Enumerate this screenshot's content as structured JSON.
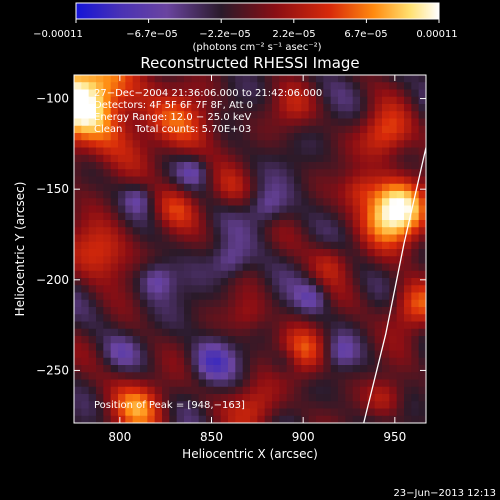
{
  "chart_data": {
    "type": "heatmap",
    "title": "Reconstructed RHESSI Image",
    "xlabel": "Heliocentric X (arcsec)",
    "ylabel": "Heliocentric Y (arcsec)",
    "xlim": [
      775,
      967
    ],
    "ylim": [
      -279,
      -87
    ],
    "x_ticks": [
      {
        "value": 800,
        "label": "800"
      },
      {
        "value": 850,
        "label": "850"
      },
      {
        "value": 900,
        "label": "900"
      },
      {
        "value": 950,
        "label": "950"
      }
    ],
    "y_ticks": [
      {
        "value": -100,
        "label": "−100"
      },
      {
        "value": -150,
        "label": "−150"
      },
      {
        "value": -200,
        "label": "−200"
      },
      {
        "value": -250,
        "label": "−250"
      }
    ],
    "colorbar": {
      "min": -0.00011,
      "max": 0.00011,
      "tick_labels": [
        "−0.00011",
        "−6.7e−05",
        "−2.2e−05",
        "2.2e−05",
        "6.7e−05",
        "0.00011"
      ],
      "unit_label": "(photons cm⁻² s⁻¹ asec⁻²)",
      "colors": [
        "#1414d8",
        "#4a32b4",
        "#6a44a0",
        "#2a1a2a",
        "#8a0e14",
        "#d82a0a",
        "#ff8a10",
        "#ffe070",
        "#ffffff"
      ]
    },
    "annotations": [
      "27−Dec−2004 21:36:06.000 to 21:42:06.000",
      "Detectors: 4F 5F 6F 7F 8F, Att 0",
      "Energy Range: 12.0 − 25.0 keV",
      "Clean    Total counts: 5.70E+03"
    ],
    "peak_label": "Position of Peak = [948,−163]",
    "peak": {
      "x": 948,
      "y": -163
    },
    "limb_visible": true,
    "sources": [
      {
        "x": 780,
        "y": -100,
        "sigma": 22,
        "amp": 1.0
      },
      {
        "x": 950,
        "y": -162,
        "sigma": 13,
        "amp": 1.1
      },
      {
        "x": 945,
        "y": -120,
        "sigma": 10,
        "amp": 0.6
      },
      {
        "x": 960,
        "y": -215,
        "sigma": 10,
        "amp": 0.6
      },
      {
        "x": 835,
        "y": -115,
        "sigma": 14,
        "amp": 0.45
      },
      {
        "x": 790,
        "y": -185,
        "sigma": 12,
        "amp": 0.55
      },
      {
        "x": 900,
        "y": -240,
        "sigma": 10,
        "amp": 0.55
      },
      {
        "x": 810,
        "y": -270,
        "sigma": 12,
        "amp": 0.6
      },
      {
        "x": 875,
        "y": -270,
        "sigma": 10,
        "amp": 0.45
      },
      {
        "x": 945,
        "y": -265,
        "sigma": 8,
        "amp": 0.4
      },
      {
        "x": 830,
        "y": -160,
        "sigma": 9,
        "amp": 0.4
      },
      {
        "x": 915,
        "y": -190,
        "sigma": 8,
        "amp": 0.35
      },
      {
        "x": 870,
        "y": -220,
        "sigma": 8,
        "amp": 0.3
      },
      {
        "x": 895,
        "y": -105,
        "sigma": 9,
        "amp": 0.3
      },
      {
        "x": 860,
        "y": -150,
        "sigma": 8,
        "amp": 0.25
      },
      {
        "x": 800,
        "y": -235,
        "sigma": 7,
        "amp": 0.35
      },
      {
        "x": 930,
        "y": -150,
        "sigma": 7,
        "amp": 0.3
      },
      {
        "x": 800,
        "y": -237,
        "sigma": 7,
        "amp": -0.5
      },
      {
        "x": 850,
        "y": -245,
        "sigma": 8,
        "amp": -0.45
      },
      {
        "x": 820,
        "y": -200,
        "sigma": 7,
        "amp": -0.4
      },
      {
        "x": 860,
        "y": -190,
        "sigma": 7,
        "amp": -0.35
      },
      {
        "x": 880,
        "y": -160,
        "sigma": 7,
        "amp": -0.35
      },
      {
        "x": 905,
        "y": -210,
        "sigma": 6,
        "amp": -0.3
      },
      {
        "x": 840,
        "y": -140,
        "sigma": 6,
        "amp": -0.3
      },
      {
        "x": 890,
        "y": -245,
        "sigma": 6,
        "amp": -0.3
      },
      {
        "x": 920,
        "y": -240,
        "sigma": 6,
        "amp": -0.3
      },
      {
        "x": 810,
        "y": -155,
        "sigma": 6,
        "amp": -0.3
      }
    ],
    "limb_points": [
      [
        967,
        -127
      ],
      [
        955,
        -180
      ],
      [
        945,
        -230
      ],
      [
        933,
        -279
      ]
    ]
  },
  "footer": {
    "timestamp": "23−Jun−2013 12:13"
  }
}
